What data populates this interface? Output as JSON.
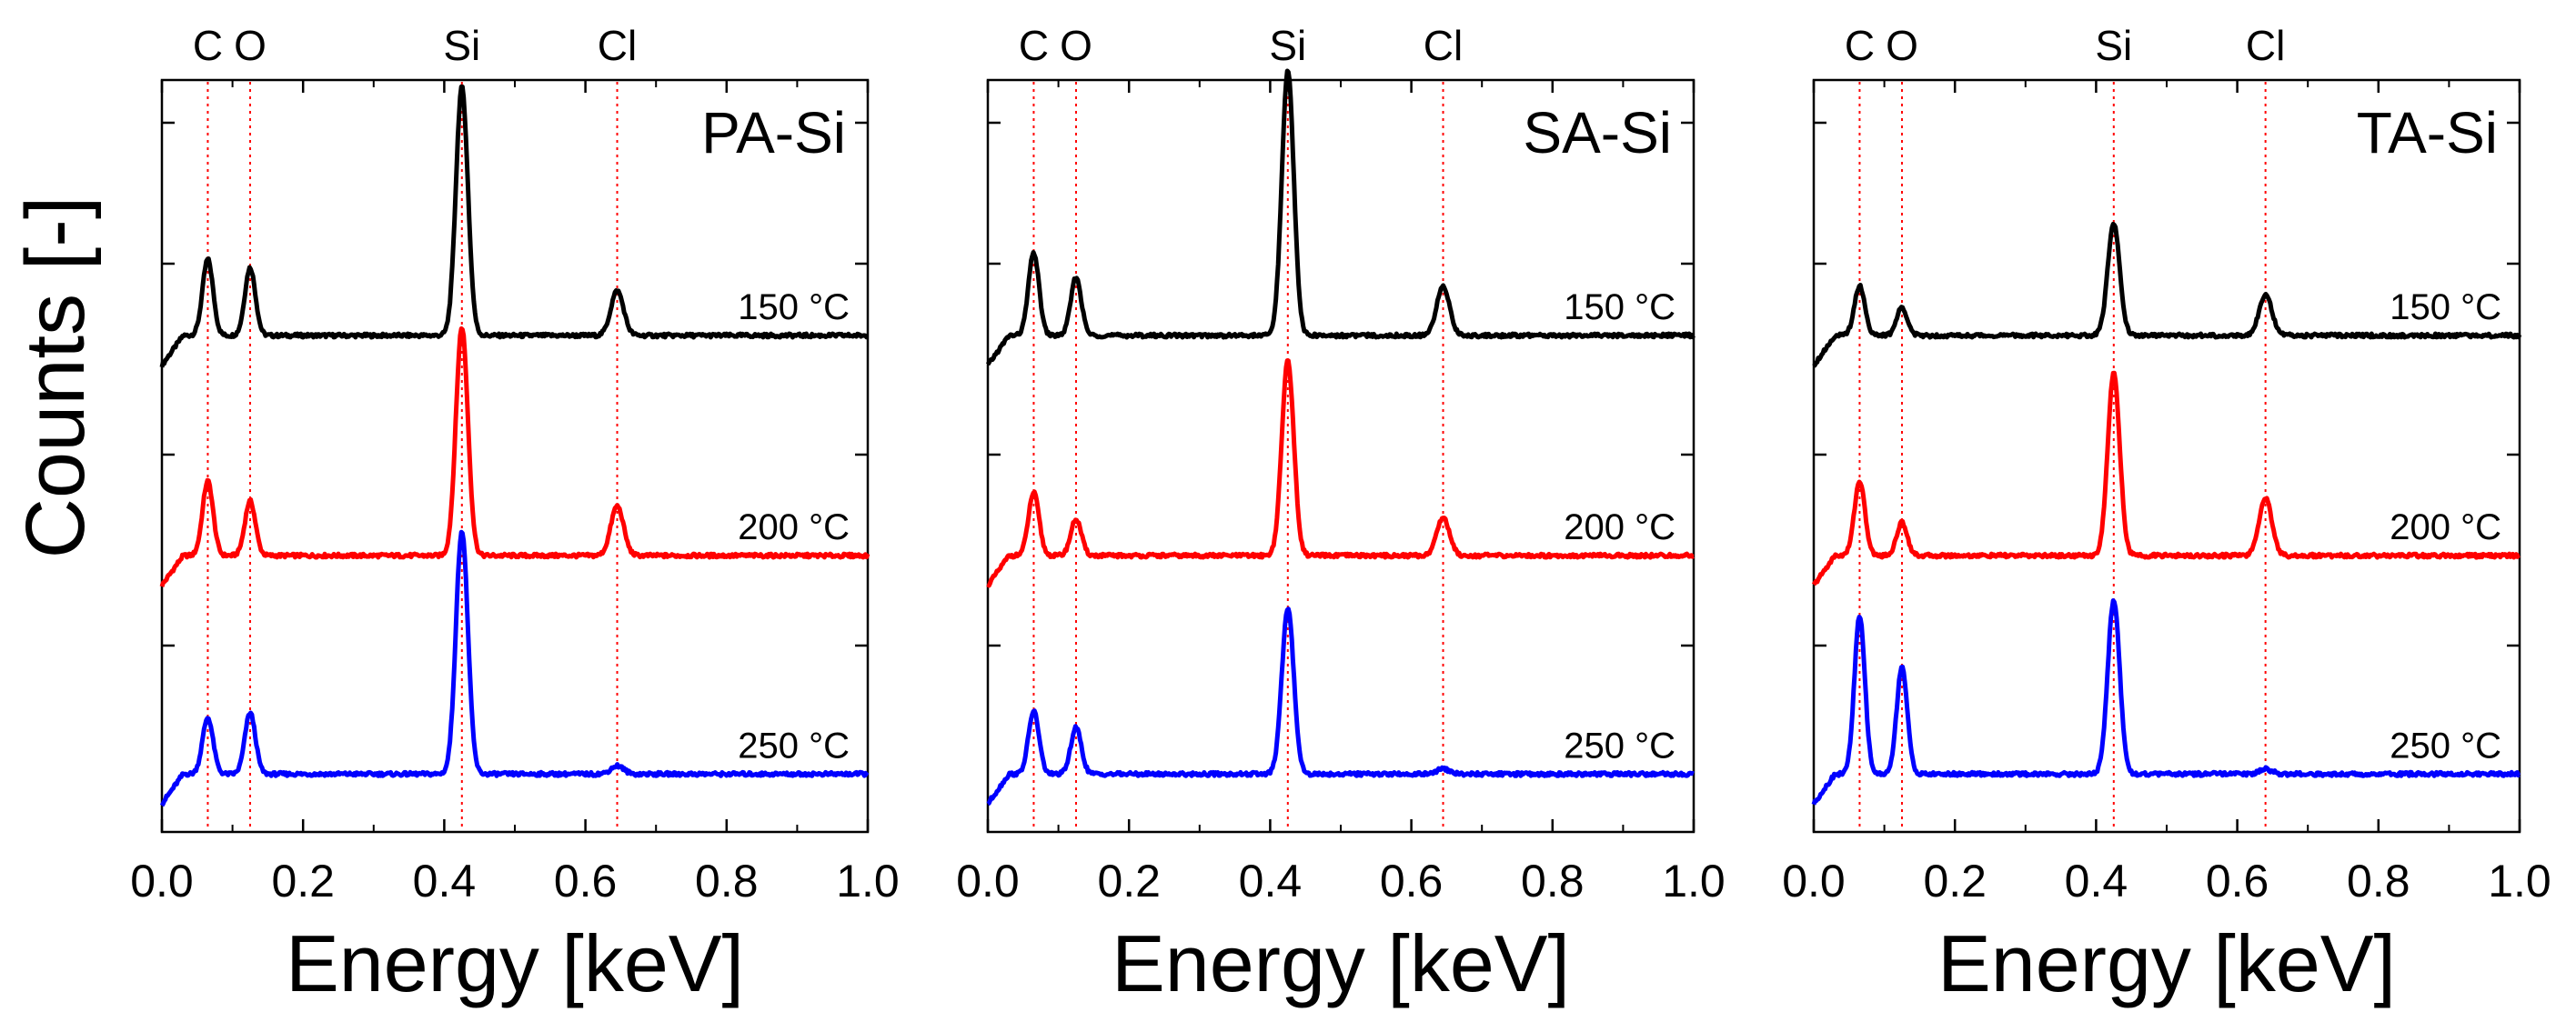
{
  "figure": {
    "ylabel": "Counts [-]",
    "xlabel": "Energy [keV]"
  },
  "colors": {
    "150": "#000000",
    "200": "#ff0000",
    "250": "#0000ff",
    "reference_line": "#ff0000"
  },
  "chart_data": [
    {
      "type": "line",
      "title": "PA-Si",
      "xlabel": "Energy [keV]",
      "ylabel": "Counts [-]",
      "xlim": [
        0.0,
        1.0
      ],
      "xticks": [
        "0.0",
        "0.2",
        "0.4",
        "0.6",
        "0.8",
        "1.0"
      ],
      "element_markers": [
        {
          "label": "C",
          "energy": 0.065
        },
        {
          "label": "O",
          "energy": 0.125
        },
        {
          "label": "Si",
          "energy": 0.425
        },
        {
          "label": "Cl",
          "energy": 0.645
        }
      ],
      "series": [
        {
          "name": "150 °C",
          "temp": "150",
          "label": "150 °C",
          "baseline": 0.0,
          "peaks": {
            "C": 0.46,
            "O": 0.41,
            "Si": 1.5,
            "Cl": 0.27
          }
        },
        {
          "name": "200 °C",
          "temp": "200",
          "label": "200 °C",
          "baseline": -1.33,
          "peaks": {
            "C": 0.45,
            "O": 0.33,
            "Si": 1.38,
            "Cl": 0.3
          }
        },
        {
          "name": "250 °C",
          "temp": "250",
          "label": "250 °C",
          "baseline": -2.65,
          "peaks": {
            "C": 0.34,
            "O": 0.37,
            "Si": 1.47,
            "Cl": 0.05
          }
        }
      ]
    },
    {
      "type": "line",
      "title": "SA-Si",
      "xlabel": "Energy [keV]",
      "ylabel": "",
      "xlim": [
        0.0,
        1.0
      ],
      "xticks": [
        "0.0",
        "0.2",
        "0.4",
        "0.6",
        "0.8",
        "1.0"
      ],
      "element_markers": [
        {
          "label": "C",
          "energy": 0.065
        },
        {
          "label": "O",
          "energy": 0.125
        },
        {
          "label": "Si",
          "energy": 0.425
        },
        {
          "label": "Cl",
          "energy": 0.645
        }
      ],
      "series": [
        {
          "name": "150 °C",
          "temp": "150",
          "label": "150 °C",
          "baseline": 0.0,
          "peaks": {
            "C": 0.5,
            "O": 0.35,
            "Si": 1.6,
            "Cl": 0.3
          }
        },
        {
          "name": "200 °C",
          "temp": "200",
          "label": "200 °C",
          "baseline": -1.33,
          "peaks": {
            "C": 0.38,
            "O": 0.22,
            "Si": 1.18,
            "Cl": 0.23
          }
        },
        {
          "name": "250 °C",
          "temp": "250",
          "label": "250 °C",
          "baseline": -2.65,
          "peaks": {
            "C": 0.38,
            "O": 0.28,
            "Si": 1.0,
            "Cl": 0.03
          }
        }
      ]
    },
    {
      "type": "line",
      "title": "TA-Si",
      "xlabel": "Energy [keV]",
      "ylabel": "",
      "xlim": [
        0.0,
        1.0
      ],
      "xticks": [
        "0.0",
        "0.2",
        "0.4",
        "0.6",
        "0.8",
        "1.0"
      ],
      "element_markers": [
        {
          "label": "C",
          "energy": 0.065
        },
        {
          "label": "O",
          "energy": 0.125
        },
        {
          "label": "Si",
          "energy": 0.425
        },
        {
          "label": "Cl",
          "energy": 0.64
        }
      ],
      "series": [
        {
          "name": "150 °C",
          "temp": "150",
          "label": "150 °C",
          "baseline": 0.0,
          "peaks": {
            "C": 0.3,
            "O": 0.17,
            "Si": 0.68,
            "Cl": 0.25
          }
        },
        {
          "name": "200 °C",
          "temp": "200",
          "label": "200 °C",
          "baseline": -1.33,
          "peaks": {
            "C": 0.45,
            "O": 0.2,
            "Si": 1.1,
            "Cl": 0.35
          }
        },
        {
          "name": "250 °C",
          "temp": "250",
          "label": "250 °C",
          "baseline": -2.65,
          "peaks": {
            "C": 0.95,
            "O": 0.65,
            "Si": 1.05,
            "Cl": 0.03
          }
        }
      ]
    }
  ]
}
